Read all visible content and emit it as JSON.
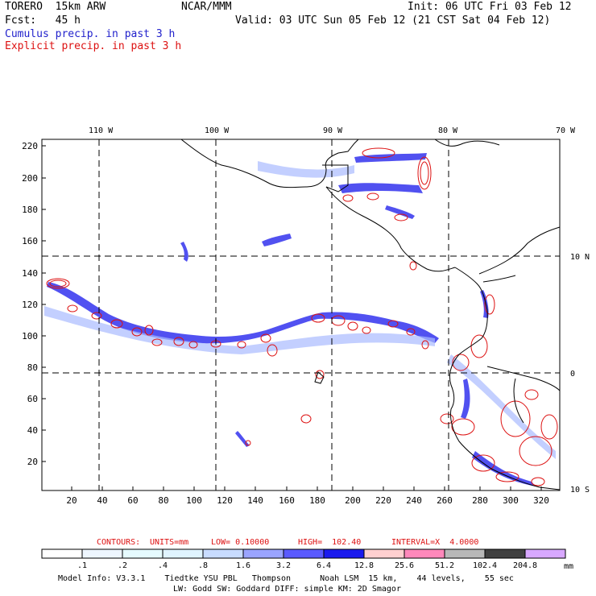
{
  "header": {
    "model_name": "TORERO  15km ARW",
    "center": "NCAR/MMM",
    "init": "Init: 06 UTC Fri 03 Feb 12",
    "fcst": "Fcst:   45 h",
    "valid": "Valid: 03 UTC Sun 05 Feb 12 (21 CST Sat 04 Feb 12)",
    "cumulus_label": "Cumulus precip. in past 3 h",
    "explicit_label": "Explicit precip. in past 3 h"
  },
  "map": {
    "top_lon_labels": [
      "110 W",
      "100 W",
      "90 W",
      "80 W",
      "70 W"
    ],
    "right_lat_labels": [
      "10 N",
      "0",
      "10 S"
    ],
    "y_ticks": [
      "220",
      "200",
      "180",
      "160",
      "140",
      "120",
      "100",
      "80",
      "60",
      "40",
      "20"
    ],
    "x_ticks": [
      "20",
      "40",
      "60",
      "80",
      "100",
      "120",
      "140",
      "160",
      "180",
      "200",
      "220",
      "240",
      "260",
      "280",
      "300",
      "320"
    ],
    "colors": {
      "cumulus": "#3333ee",
      "cumulus_light": "#aabbff",
      "explicit": "#dd1111",
      "coast": "#000000"
    }
  },
  "contours": {
    "label": "CONTOURS:",
    "units": "UNITS=mm",
    "low": "LOW= 0.10000",
    "high": "HIGH=  102.40",
    "interval": "INTERVAL=X  4.0000"
  },
  "colorbar": {
    "labels": [
      ".1",
      ".2",
      ".4",
      ".8",
      "1.6",
      "3.2",
      "6.4",
      "12.8",
      "25.6",
      "51.2",
      "102.4",
      "204.8"
    ],
    "unit": "mm",
    "colors": [
      "#ffffff",
      "#eef6ff",
      "#e6fbff",
      "#e0f4ff",
      "#c8dcff",
      "#9aa4ff",
      "#5a5aff",
      "#1a1aee",
      "#ffd0d0",
      "#ff88bb",
      "#b8b8b8",
      "#404040",
      "#d8a8ff"
    ]
  },
  "footer": {
    "line1": "Model Info: V3.3.1    Tiedtke YSU PBL   Thompson      Noah LSM  15 km,    44 levels,    55 sec",
    "line2": "LW: Godd SW: Goddard DIFF: simple KM: 2D Smagor"
  }
}
